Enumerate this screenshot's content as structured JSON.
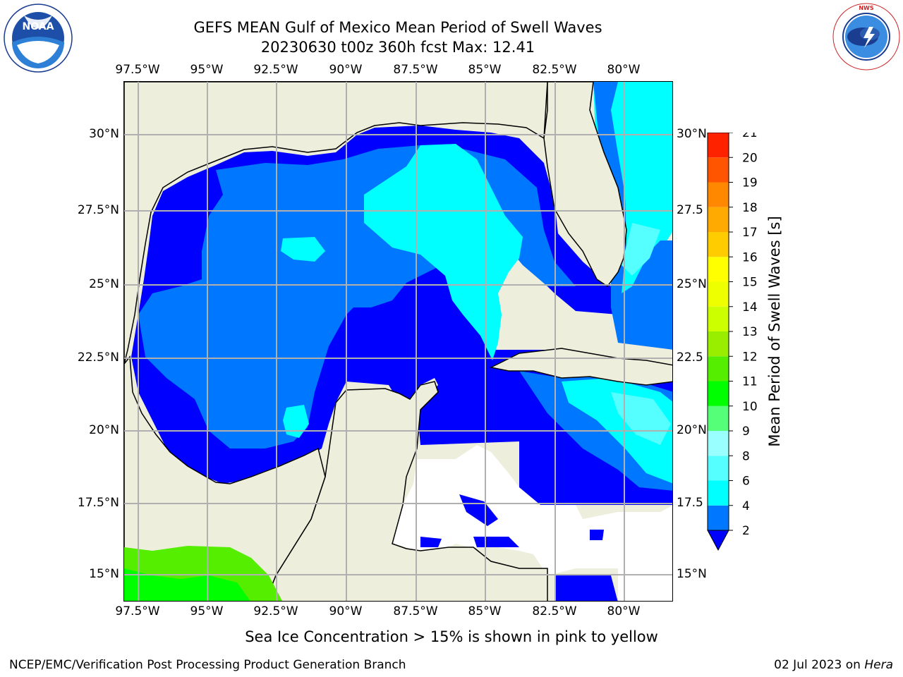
{
  "header": {
    "title_line1": "GEFS MEAN Gulf of Mexico Mean Period of Swell Waves",
    "title_line2": "20230630 t00z 360h fcst   Max: 12.41"
  },
  "logos": {
    "left_text": "NOAA",
    "left_ring_text": "NATIONAL OCEANIC AND ATMOSPHERIC ADMINISTRATION · U.S. DEPARTMENT OF COMMERCE",
    "right_ring_text": "NATIONAL WEATHER SERVICE"
  },
  "map": {
    "lon_labels_top": [
      "97.5°W",
      "95°W",
      "92.5°W",
      "90°W",
      "87.5°W",
      "85°W",
      "82.5°W",
      "80°W"
    ],
    "lon_labels_bottom": [
      "97.5°W",
      "95°W",
      "92.5°W",
      "90°W",
      "87.5°W",
      "85°W",
      "82.5°W",
      "80°W"
    ],
    "lat_labels_left": [
      "30°N",
      "27.5°N",
      "25°N",
      "22.5°N",
      "20°N",
      "17.5°N",
      "15°N"
    ],
    "lat_labels_right": [
      "30°N",
      "27.5",
      "25°N",
      "22.5",
      "20°N",
      "17.5",
      "15°N"
    ],
    "colors": {
      "land": "#eeeedd",
      "grid": "#b0b0b0",
      "coast": "#000000",
      "nodata": "#ffffff"
    }
  },
  "colorbar": {
    "label": "Mean Period of Swell Waves [s]",
    "ticks": [
      "2",
      "4",
      "6",
      "8",
      "9",
      "10",
      "11",
      "12",
      "13",
      "14",
      "15",
      "16",
      "17",
      "18",
      "19",
      "20",
      "21"
    ],
    "colors": [
      "#0000ff",
      "#0077ff",
      "#00ffff",
      "#55ffff",
      "#99ffff",
      "#55ff77",
      "#00ff00",
      "#55ee00",
      "#99ee00",
      "#ccff00",
      "#eeff00",
      "#ffff00",
      "#ffcc00",
      "#ffaa00",
      "#ff8800",
      "#ff5500",
      "#ff2200",
      "#ff0000"
    ]
  },
  "caption": "Sea Ice Concentration > 15% is shown in pink to yellow",
  "footer": {
    "left": "NCEP/EMC/Verification Post Processing Product Generation Branch",
    "right_date": "02 Jul 2023 on",
    "right_host": "Hera"
  }
}
